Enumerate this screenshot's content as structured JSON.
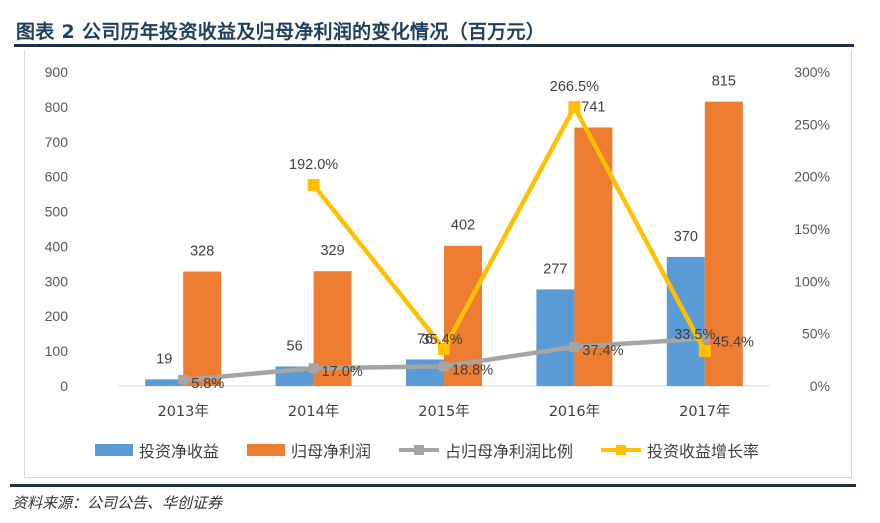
{
  "header": {
    "title": "图表 2 公司历年投资收益及归母净利润的变化情况（百万元）"
  },
  "footer": {
    "source": "资料来源：公司公告、华创证券"
  },
  "colors": {
    "title": "#1f3f5b",
    "rule": "#1f3244",
    "investment_income": "#5b9bd5",
    "net_profit": "#ed7d31",
    "ratio": "#a5a5a5",
    "growth": "#ffc000"
  },
  "chart_data": {
    "type": "bar",
    "title": "图表 2 公司历年投资收益及归母净利润的变化情况（百万元）",
    "xlabel": "",
    "ylabel": "",
    "ylim": [
      0,
      900
    ],
    "y_ticks": [
      "0",
      "100",
      "200",
      "300",
      "400",
      "500",
      "600",
      "700",
      "800",
      "900"
    ],
    "y2lim": [
      0,
      300
    ],
    "y2_ticks": [
      "0%",
      "50%",
      "100%",
      "150%",
      "200%",
      "250%",
      "300%"
    ],
    "grid": false,
    "legend_position": "bottom",
    "categories": [
      "2013年",
      "2014年",
      "2015年",
      "2016年",
      "2017年"
    ],
    "series": [
      {
        "name": "投资净收益",
        "type": "bar",
        "axis": "left",
        "color": "#5b9bd5",
        "values": [
          19,
          56,
          76,
          277,
          370
        ],
        "labels": [
          "19",
          "56",
          "76",
          "277",
          "370"
        ]
      },
      {
        "name": "归母净利润",
        "type": "bar",
        "axis": "left",
        "color": "#ed7d31",
        "values": [
          328,
          329,
          402,
          741,
          815
        ],
        "labels": [
          "328",
          "329",
          "402",
          "741",
          "815"
        ]
      },
      {
        "name": "占归母净利润比例",
        "type": "line",
        "axis": "right",
        "color": "#a5a5a5",
        "values": [
          5.8,
          17.0,
          18.8,
          37.4,
          45.4
        ],
        "labels": [
          "5.8%",
          "17.0%",
          "18.8%",
          "37.4%",
          "45.4%"
        ]
      },
      {
        "name": "投资收益增长率",
        "type": "line",
        "axis": "right",
        "color": "#ffc000",
        "values": [
          null,
          192.0,
          35.4,
          266.5,
          33.5
        ],
        "labels": [
          null,
          "192.0%",
          "35.4%",
          "266.5%",
          "33.5%"
        ]
      }
    ]
  }
}
